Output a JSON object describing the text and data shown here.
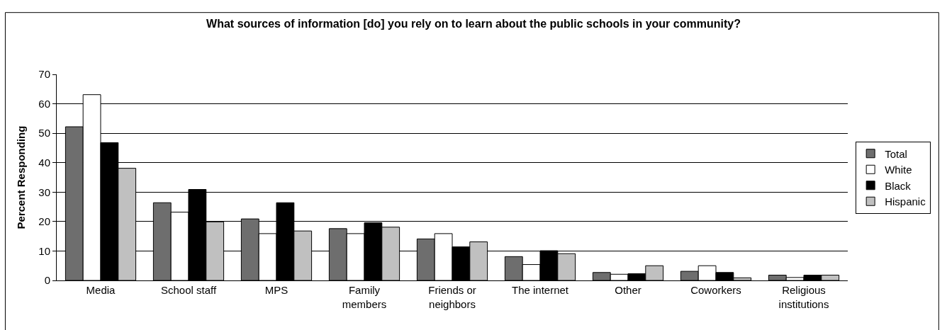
{
  "chart_data": {
    "type": "bar",
    "title": "What sources of information [do] you rely on to learn about the public schools in your community?",
    "ylabel": "Percent Responding",
    "categories": [
      "Media",
      "School staff",
      "MPS",
      "Family members",
      "Friends or neighbors",
      "The internet",
      "Other",
      "Coworkers",
      "Religious institutions"
    ],
    "series": [
      {
        "name": "Total",
        "color": "#6e6e6e",
        "values": [
          52.2,
          26.4,
          20.9,
          17.6,
          14.1,
          8.1,
          2.7,
          3.1,
          1.8
        ]
      },
      {
        "name": "White",
        "color": "#ffffff",
        "values": [
          63.1,
          23.2,
          15.9,
          15.9,
          15.9,
          5.4,
          2.1,
          5.0,
          1.0
        ]
      },
      {
        "name": "Black",
        "color": "#000000",
        "values": [
          46.8,
          30.9,
          26.4,
          19.6,
          11.4,
          10.1,
          2.3,
          2.7,
          1.8
        ]
      },
      {
        "name": "Hispanic",
        "color": "#c0c0c0",
        "values": [
          38.1,
          19.9,
          16.8,
          18.1,
          13.1,
          9.1,
          5.0,
          0.9,
          1.8
        ]
      }
    ],
    "ylim": [
      0,
      70
    ],
    "yticks": [
      0,
      10,
      20,
      30,
      40,
      50,
      60,
      70
    ],
    "grid": "y",
    "legend": "right"
  }
}
